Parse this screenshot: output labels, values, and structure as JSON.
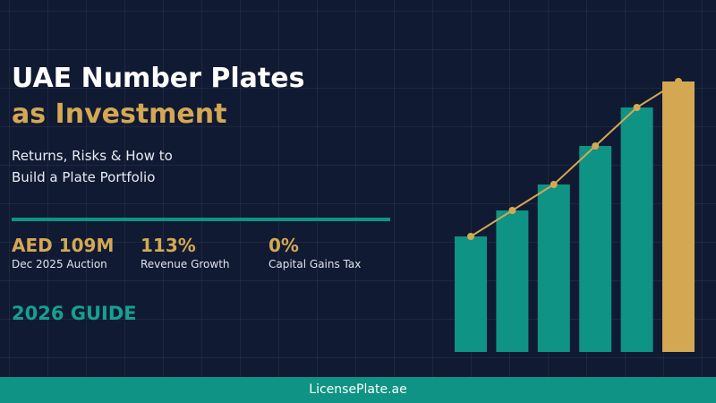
{
  "header": {
    "title": "UAE Number Plates",
    "title_accent": "as Investment",
    "subtitle_lines": [
      "Returns, Risks & How to",
      "Build a Plate Portfolio"
    ]
  },
  "stats": [
    {
      "value": "AED 109M",
      "label": "Dec 2025 Auction"
    },
    {
      "value": "113%",
      "label": "Revenue Growth"
    },
    {
      "value": "0%",
      "label": "Capital Gains Tax"
    }
  ],
  "guide": "2026 GUIDE",
  "chart": {
    "type": "bar",
    "values": [
      129,
      158,
      187,
      230,
      273,
      302
    ],
    "colors": [
      "#0e9384",
      "#0e9384",
      "#0e9384",
      "#0e9384",
      "#0e9384",
      "#d4a853"
    ],
    "line_color": "#d4a853"
  },
  "footer": "LicensePlate.ae"
}
